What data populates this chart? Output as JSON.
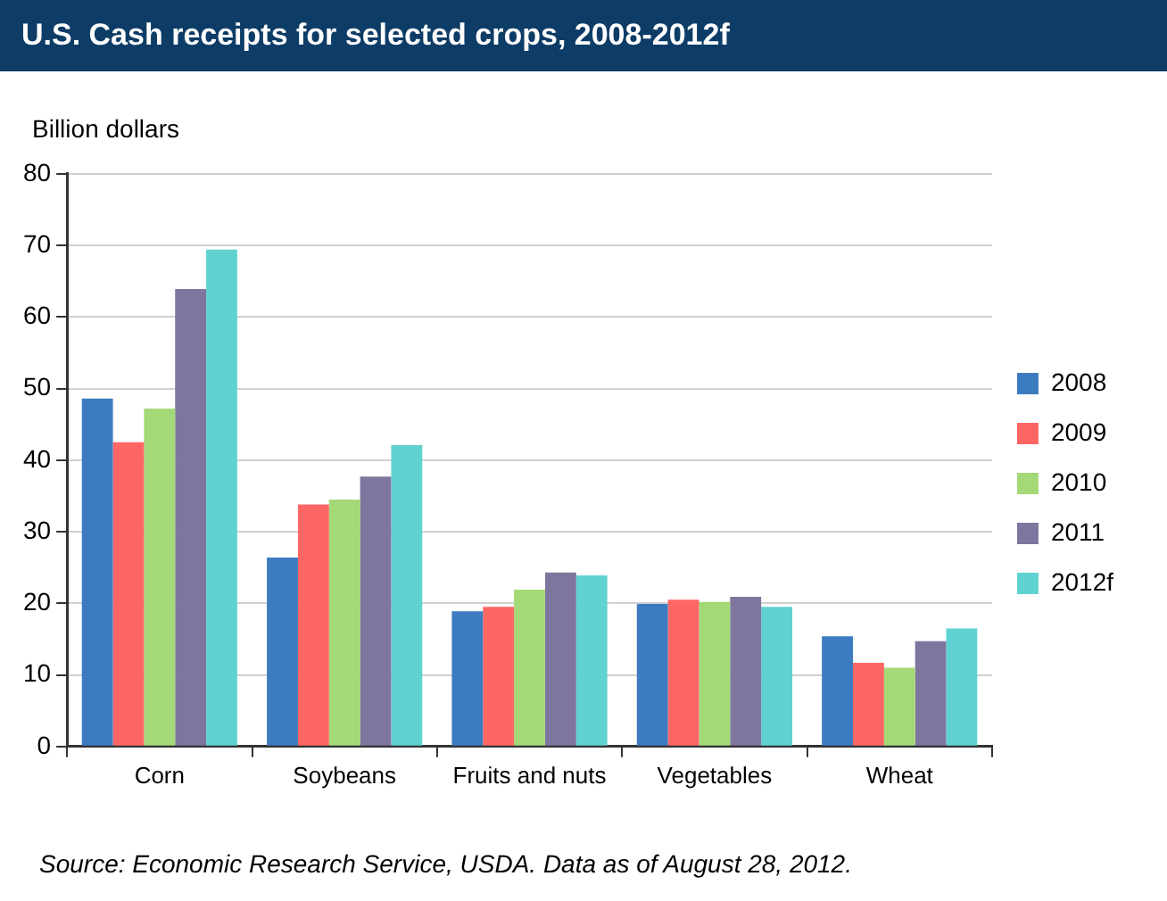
{
  "chart_data": {
    "type": "bar",
    "title": "U.S. Cash receipts for selected crops, 2008-2012f",
    "ylabel": "Billion dollars",
    "categories": [
      "Corn",
      "Soybeans",
      "Fruits and nuts",
      "Vegetables",
      "Wheat"
    ],
    "series": [
      {
        "name": "2008",
        "color": "#3c7bbf",
        "values": [
          48.6,
          26.4,
          18.9,
          19.9,
          15.4
        ]
      },
      {
        "name": "2009",
        "color": "#fe6666",
        "values": [
          42.5,
          33.8,
          19.5,
          20.5,
          11.7
        ]
      },
      {
        "name": "2010",
        "color": "#a3d977",
        "values": [
          47.2,
          34.5,
          21.9,
          20.2,
          11.0
        ]
      },
      {
        "name": "2011",
        "color": "#7f769f",
        "values": [
          63.9,
          37.7,
          24.3,
          20.9,
          14.7
        ]
      },
      {
        "name": "2012f",
        "color": "#60d2d2",
        "values": [
          69.4,
          42.1,
          23.9,
          19.5,
          16.5
        ]
      }
    ],
    "ylim": [
      0,
      80
    ],
    "yticks": [
      0,
      10,
      20,
      30,
      40,
      50,
      60,
      70,
      80
    ],
    "grid": "y",
    "legend": "right",
    "annotations": [
      "Source: Economic Research Service, USDA. Data as of August 28, 2012."
    ]
  }
}
